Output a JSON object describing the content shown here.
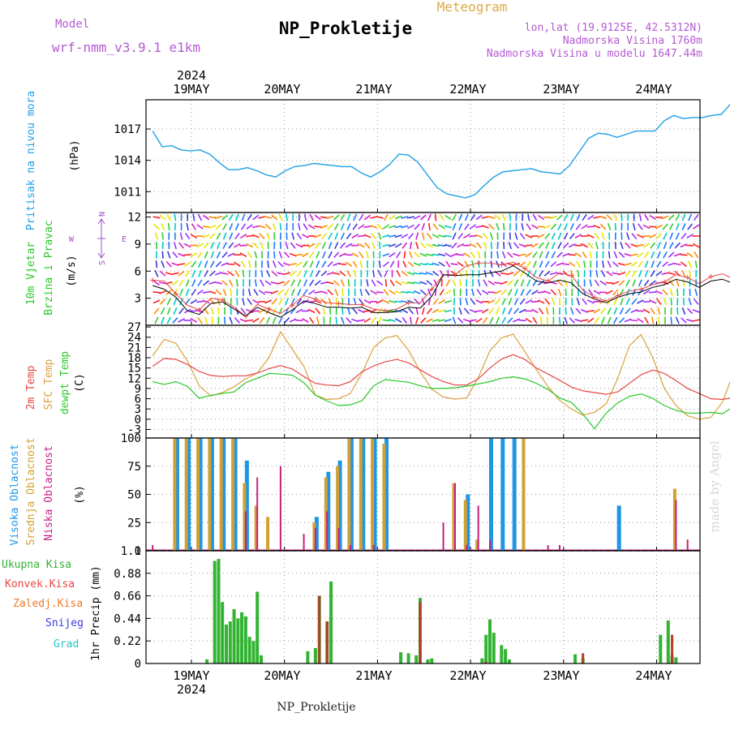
{
  "header": {
    "model_label": "Model",
    "model_name": "wrf-nmm_v3.9.1 e1km",
    "product": "Meteogram",
    "station": "NP_Prokletije",
    "lonlat": "lon,lat (19.9125E, 42.5312N)",
    "elevation": "Nadmorska Visina 1760m",
    "model_elevation": "Nadmorska Visina u modelu 1647.44m"
  },
  "footer": {
    "station": "NP_Prokletije",
    "credit": "made by Angel"
  },
  "time_axis": {
    "year": "2024",
    "days": [
      "19MAY",
      "20MAY",
      "21MAY",
      "22MAY",
      "23MAY",
      "24MAY"
    ]
  },
  "colors": {
    "pressure": "#1ea0e6",
    "temp2m": "#e64646",
    "sfc_temp": "#dca03c",
    "dewpt": "#28c828",
    "high_cloud": "#1e96e6",
    "mid_cloud": "#d2a032",
    "low_cloud": "#c81e82",
    "total_precip": "#32b432",
    "conv_precip": "#b43c28",
    "frozen_precip": "#f07828",
    "snow": "#3c3cdc",
    "graupel": "#28c8c8",
    "wind_speed": "#000000",
    "wind_gust": "#e64646",
    "compass": "#a050c8"
  },
  "chart_data": [
    {
      "type": "line",
      "name": "pressure",
      "ylabel_left": "Pritisak na nivou mora",
      "ylabel_right": "(hPa)",
      "yticks": [
        "1011",
        "1014",
        "1017"
      ],
      "ylim": [
        1009,
        1019.8
      ],
      "x_start_hour": -10,
      "x_step_hours": 3,
      "x_end_hour": 131,
      "values": [
        1016.8,
        1015.3,
        1015.4,
        1015.0,
        1014.9,
        1015.0,
        1014.6,
        1013.8,
        1013.1,
        1013.1,
        1013.3,
        1013.0,
        1012.6,
        1012.4,
        1013.0,
        1013.4,
        1013.5,
        1013.7,
        1013.6,
        1013.5,
        1013.4,
        1013.4,
        1012.8,
        1012.4,
        1012.9,
        1013.6,
        1014.6,
        1014.5,
        1013.8,
        1012.6,
        1011.4,
        1010.8,
        1010.6,
        1010.4,
        1010.7,
        1011.6,
        1012.4,
        1012.9,
        1013.0,
        1013.1,
        1013.2,
        1012.9,
        1012.8,
        1012.7,
        1013.5,
        1014.8,
        1016.1,
        1016.6,
        1016.5,
        1016.2,
        1016.5,
        1016.8,
        1016.8,
        1016.8,
        1017.8,
        1018.3,
        1018.0,
        1018.1,
        1018.1,
        1018.3,
        1018.4,
        1019.4,
        1019.3,
        1019.6
      ],
      "series_label": "Pritisak na nivou mora"
    },
    {
      "type": "line",
      "name": "wind",
      "ylabel_left_1": "10m Vjetar",
      "ylabel_left_2": "Brzina i Pravac",
      "ylabel_right": "(m/s)",
      "compass": {
        "n": "N",
        "s": "S",
        "e": "E",
        "w": "W"
      },
      "yticks": [
        "3",
        "6",
        "9",
        "12"
      ],
      "ylim": [
        0,
        12.5
      ],
      "x_start_hour": -10,
      "x_step_hours": 3,
      "speed": [
        4.4,
        4.0,
        3.1,
        1.6,
        1.2,
        2.4,
        2.6,
        1.8,
        1.0,
        2.0,
        1.4,
        0.9,
        1.7,
        2.7,
        2.4,
        2.0,
        2.0,
        1.9,
        2.0,
        1.4,
        1.4,
        1.5,
        2.0,
        1.9,
        3.2,
        5.6,
        5.5,
        5.6,
        5.6,
        5.8,
        6.0,
        6.6,
        5.8,
        4.9,
        4.7,
        5.0,
        4.7,
        3.5,
        2.9,
        2.5,
        3.1,
        3.5,
        3.7,
        4.2,
        4.5,
        5.1,
        4.8,
        4.2,
        4.9,
        5.1,
        4.6,
        4.1,
        3.6,
        4.2,
        4.5,
        5.8,
        5.9,
        4.9,
        3.7,
        2.5,
        2.3,
        3.4,
        3.2,
        3.0
      ],
      "gust": [
        5.0,
        4.9,
        3.5,
        2.2,
        1.7,
        3.0,
        2.8,
        2.0,
        1.0,
        2.3,
        1.8,
        1.3,
        2.2,
        3.3,
        2.9,
        2.5,
        2.4,
        2.3,
        2.3,
        1.8,
        1.6,
        1.8,
        2.5,
        2.5,
        4.0,
        5.6,
        5.6,
        6.6,
        6.9,
        6.9,
        6.7,
        7.0,
        6.3,
        5.3,
        4.9,
        5.8,
        5.5,
        3.9,
        3.1,
        2.7,
        3.3,
        3.8,
        4.0,
        4.5,
        4.8,
        5.6,
        5.3,
        4.6,
        5.4,
        5.7,
        5.1,
        4.4,
        3.6,
        4.6,
        5.3,
        6.6,
        6.7,
        5.4,
        3.9,
        2.7,
        2.8,
        3.9,
        3.5,
        3.4
      ]
    },
    {
      "type": "line",
      "name": "temperature",
      "ylabel_left_1": "2m Temp",
      "ylabel_left_2": "SFC Temp",
      "ylabel_left_3": "dewpt Temp",
      "ylabel_right": "(C)",
      "yticks": [
        "-3",
        "0",
        "3",
        "6",
        "9",
        "12",
        "15",
        "18",
        "21",
        "24",
        "27"
      ],
      "ylim": [
        -5.5,
        27.5
      ],
      "x_start_hour": -10,
      "x_step_hours": 3,
      "series": [
        {
          "name": "2m Temp",
          "values": [
            15.5,
            17.8,
            17.5,
            16.0,
            14.0,
            12.8,
            12.5,
            12.7,
            12.7,
            13.5,
            14.8,
            15.7,
            14.7,
            12.5,
            10.5,
            10.0,
            9.8,
            11.0,
            13.9,
            15.6,
            16.8,
            17.5,
            16.5,
            14.5,
            12.5,
            11.0,
            10.0,
            10.0,
            11.8,
            15.0,
            17.6,
            18.9,
            17.5,
            15.0,
            13.2,
            11.4,
            9.4,
            8.3,
            7.8,
            7.3,
            8.0,
            10.5,
            13.0,
            14.4,
            13.4,
            11.3,
            9.0,
            7.5,
            6.0,
            5.8,
            6.3,
            8.6,
            12.0,
            14.0,
            13.3,
            11.2,
            9.4,
            7.0,
            6.6,
            6.9,
            7.3,
            10.5,
            13.0,
            12.2
          ]
        },
        {
          "name": "SFC Temp",
          "values": [
            18.5,
            23.4,
            22.2,
            17.0,
            9.8,
            6.8,
            7.8,
            9.5,
            11.8,
            13.5,
            18.0,
            25.6,
            20.5,
            15.5,
            7.0,
            5.8,
            6.0,
            7.5,
            13.5,
            21.0,
            23.8,
            24.5,
            20.2,
            14.0,
            8.8,
            6.5,
            5.9,
            6.2,
            12.2,
            20.0,
            23.8,
            24.9,
            19.8,
            14.5,
            9.5,
            5.5,
            3.0,
            1.2,
            2.0,
            4.5,
            12.0,
            21.5,
            24.8,
            18.0,
            9.0,
            4.0,
            1.0,
            0.0,
            0.5,
            5.0,
            14.0,
            22.0,
            20.0,
            13.0,
            7.0,
            3.0,
            1.5,
            1.2,
            1.5,
            6.0,
            13.0,
            21.0,
            19.3,
            15.7
          ]
        },
        {
          "name": "dewpt Temp",
          "values": [
            11.0,
            10.2,
            11.0,
            9.6,
            6.1,
            7.0,
            7.5,
            8.0,
            10.7,
            12.0,
            13.4,
            13.2,
            12.9,
            10.7,
            7.0,
            5.3,
            4.0,
            4.2,
            5.4,
            9.8,
            11.6,
            11.2,
            10.8,
            9.8,
            9.0,
            9.0,
            9.2,
            9.7,
            10.3,
            11.0,
            12.0,
            12.4,
            11.8,
            10.5,
            8.7,
            6.2,
            4.9,
            1.5,
            -2.8,
            1.8,
            4.8,
            6.7,
            7.4,
            6.1,
            4.0,
            2.6,
            1.8,
            1.8,
            2.0,
            1.6,
            3.8,
            2.7,
            3.7,
            2.5,
            1.5,
            0.5,
            0.8,
            1.2,
            1.6,
            2.5,
            6.3,
            6.4,
            6.7,
            4.8
          ]
        }
      ]
    },
    {
      "type": "bar",
      "name": "cloud_cover",
      "ylabel_left_1": "Visoka Oblacnost",
      "ylabel_left_2": "Srednja Oblacnost",
      "ylabel_left_3": "Niska Oblacnost",
      "ylabel_right": "(%)",
      "yticks": [
        "0",
        "25",
        "50",
        "75",
        "100"
      ],
      "ylim": [
        0,
        100
      ],
      "x_start_hour": -10,
      "x_step_hours": 3,
      "series": [
        {
          "name": "Visoka Oblacnost",
          "values": [
            0,
            0,
            100,
            100,
            100,
            100,
            100,
            100,
            80,
            0,
            0,
            0,
            0,
            0,
            30,
            70,
            80,
            100,
            100,
            100,
            100,
            0,
            0,
            0,
            0,
            0,
            0,
            50,
            0,
            100,
            100,
            100,
            0,
            0,
            0,
            0,
            0,
            0,
            0,
            0,
            40,
            0,
            0,
            0,
            0,
            0,
            0,
            0,
            0,
            0,
            0,
            0,
            0,
            0,
            0,
            0,
            0,
            0,
            0,
            0,
            0,
            0,
            0,
            0
          ]
        },
        {
          "name": "Srednja Oblacnost",
          "values": [
            0,
            0,
            100,
            100,
            100,
            100,
            100,
            100,
            60,
            40,
            30,
            0,
            0,
            0,
            25,
            65,
            75,
            100,
            100,
            100,
            95,
            0,
            0,
            0,
            0,
            0,
            60,
            45,
            10,
            0,
            0,
            0,
            100,
            0,
            0,
            0,
            0,
            0,
            0,
            0,
            0,
            0,
            0,
            0,
            0,
            55,
            0,
            0,
            0,
            0,
            0,
            0,
            0,
            0,
            0,
            20,
            40,
            0,
            0,
            0,
            0,
            0,
            0,
            75
          ]
        },
        {
          "name": "Niska Oblacnost",
          "values": [
            5,
            0,
            0,
            0,
            0,
            0,
            0,
            0,
            35,
            65,
            0,
            75,
            0,
            15,
            20,
            35,
            20,
            5,
            0,
            5,
            0,
            0,
            0,
            0,
            0,
            25,
            60,
            5,
            40,
            10,
            0,
            0,
            0,
            0,
            5,
            5,
            0,
            0,
            0,
            0,
            0,
            0,
            0,
            0,
            0,
            45,
            10,
            0,
            0,
            0,
            0,
            0,
            0,
            0,
            45,
            62,
            35,
            5,
            0,
            0,
            0,
            0,
            0,
            45
          ]
        }
      ]
    },
    {
      "type": "bar",
      "name": "precipitation",
      "legend": [
        "Ukupna Kisa",
        "Konvek.Kisa",
        "Zaledj.Kisa",
        "Snijeg",
        "Grad"
      ],
      "ylabel_right": "1hr Precip (mm)",
      "yticks": [
        "0",
        "0.22",
        "0.44",
        "0.66",
        "0.88",
        "1.1"
      ],
      "ylim": [
        0,
        1.1
      ],
      "x_start_hour": -10,
      "x_step_hours": 1,
      "series": [
        {
          "name": "Ukupna Kisa",
          "bars": [
            [
              14,
              0.04
            ],
            [
              16,
              1.0
            ],
            [
              17,
              1.02
            ],
            [
              18,
              0.6
            ],
            [
              19,
              0.38
            ],
            [
              20,
              0.41
            ],
            [
              21,
              0.53
            ],
            [
              22,
              0.44
            ],
            [
              23,
              0.5
            ],
            [
              24,
              0.46
            ],
            [
              25,
              0.26
            ],
            [
              26,
              0.22
            ],
            [
              27,
              0.7
            ],
            [
              28,
              0.08
            ],
            [
              40,
              0.12
            ],
            [
              42,
              0.15
            ],
            [
              43,
              0.66
            ],
            [
              45,
              0.41
            ],
            [
              46,
              0.8
            ],
            [
              64,
              0.11
            ],
            [
              66,
              0.1
            ],
            [
              68,
              0.08
            ],
            [
              69,
              0.64
            ],
            [
              71,
              0.04
            ],
            [
              72,
              0.05
            ],
            [
              85,
              0.05
            ],
            [
              86,
              0.28
            ],
            [
              87,
              0.43
            ],
            [
              88,
              0.3
            ],
            [
              90,
              0.18
            ],
            [
              91,
              0.14
            ],
            [
              92,
              0.04
            ],
            [
              109,
              0.09
            ],
            [
              111,
              0.05
            ],
            [
              131,
              0.28
            ],
            [
              133,
              0.42
            ],
            [
              134,
              0.08
            ],
            [
              135,
              0.06
            ],
            [
              148,
              0.12
            ],
            [
              152,
              0.42
            ]
          ]
        },
        {
          "name": "Konvek.Kisa",
          "bars": [
            [
              43,
              0.66
            ],
            [
              45,
              0.41
            ],
            [
              69,
              0.6
            ],
            [
              86,
              0.02
            ],
            [
              111,
              0.1
            ],
            [
              134,
              0.28
            ],
            [
              152,
              0.38
            ]
          ]
        }
      ]
    }
  ]
}
